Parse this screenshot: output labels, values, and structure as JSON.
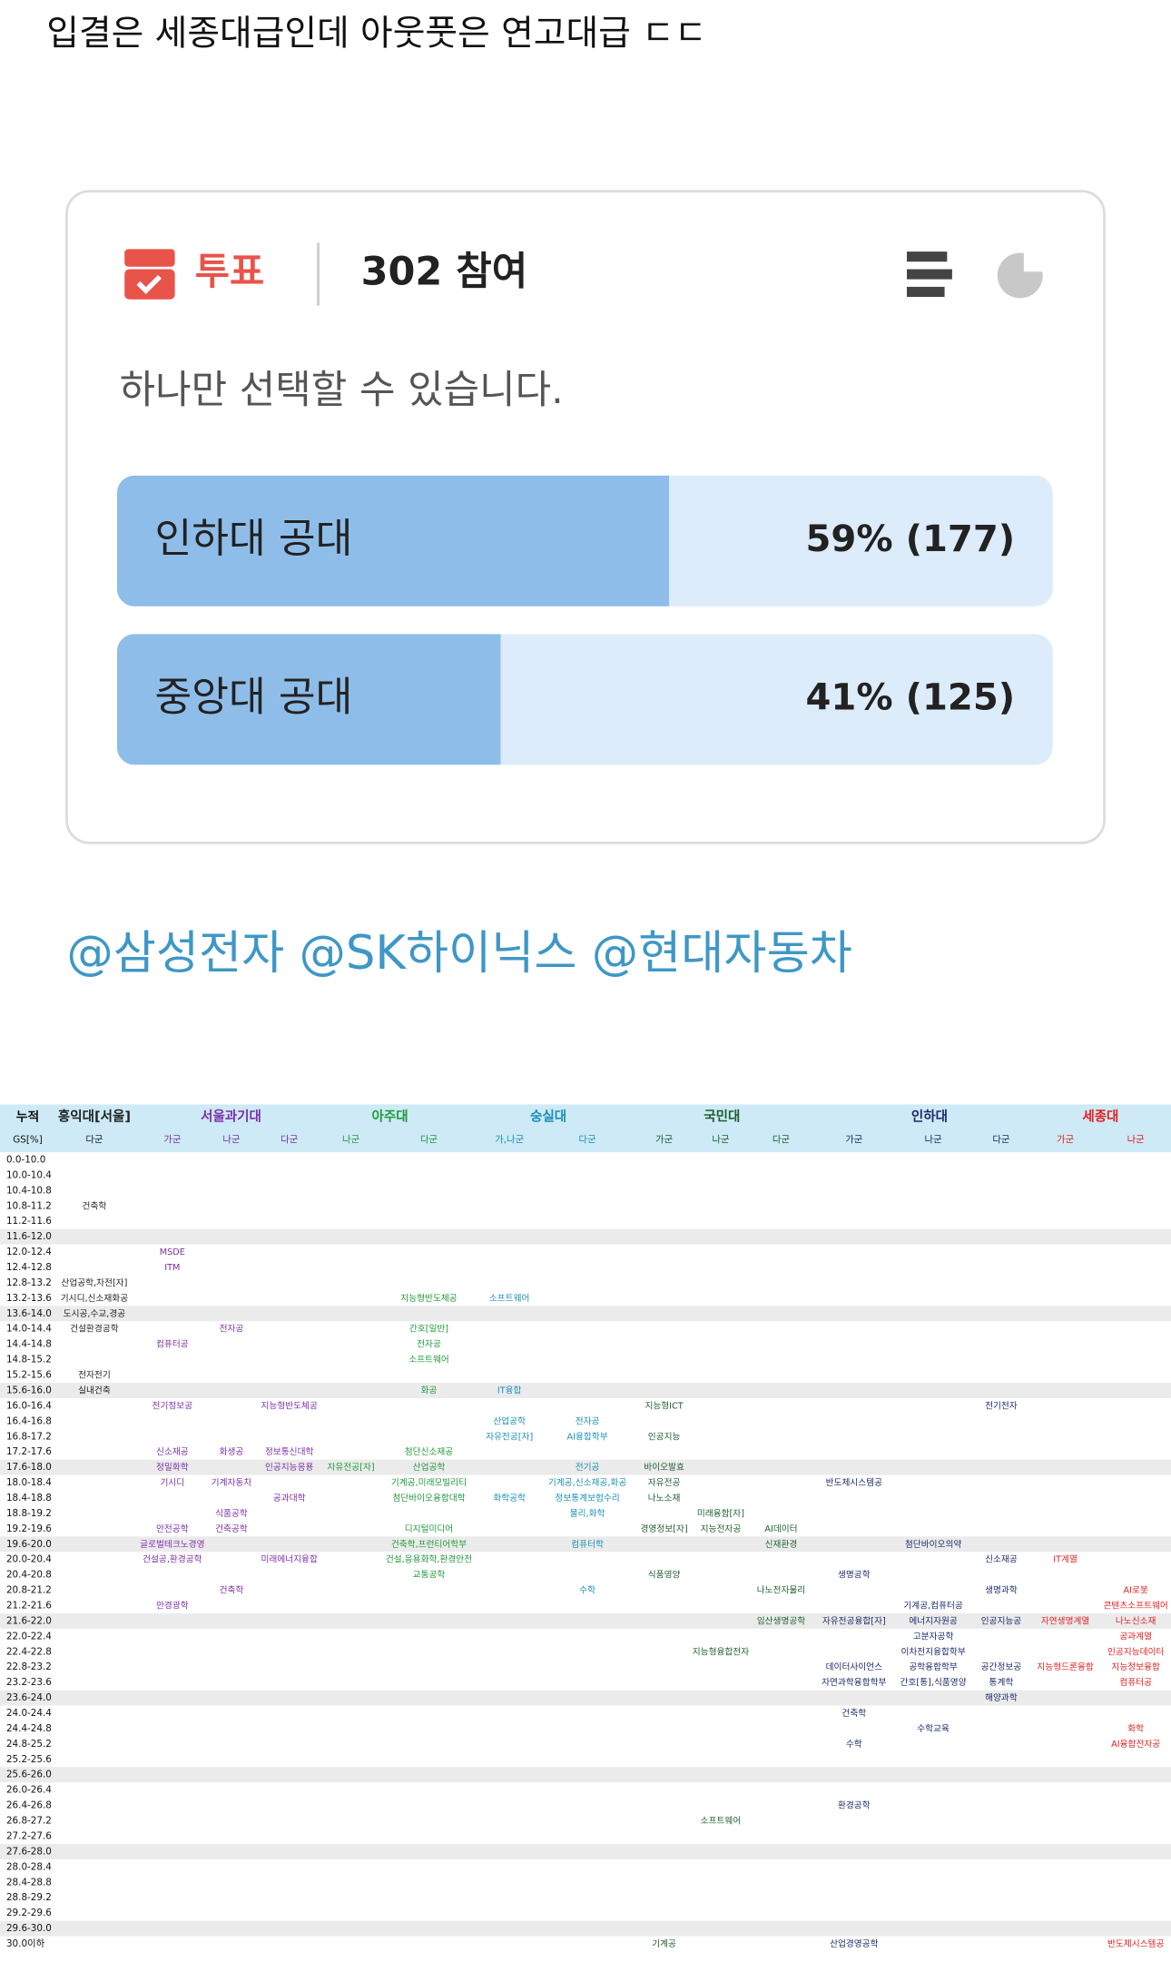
{
  "post": {
    "title": "입결은 세종대급인데 아웃풋은 연고대급 ㄷㄷ",
    "poll": {
      "badge": "투표",
      "participation": "302 참여",
      "instruction": "하나만 선택할 수 있습니다.",
      "options": [
        {
          "name": "인하대 공대",
          "percent": 59,
          "count": 177,
          "label": "59% (177)"
        },
        {
          "name": "중앙대 공대",
          "percent": 41,
          "count": 125,
          "label": "41% (125)"
        }
      ]
    },
    "mentions": "@삼성전자 @SK하이닉스 @현대자동차"
  },
  "table": {
    "corner": [
      "누적",
      "GS[%]"
    ],
    "rows": [
      "0.0-10.0",
      "10.0-10.4",
      "10.4-10.8",
      "10.8-11.2",
      "11.2-11.6",
      "11.6-12.0",
      "12.0-12.4",
      "12.4-12.8",
      "12.8-13.2",
      "13.2-13.6",
      "13.6-14.0",
      "14.0-14.4",
      "14.4-14.8",
      "14.8-15.2",
      "15.2-15.6",
      "15.6-16.0",
      "16.0-16.4",
      "16.4-16.8",
      "16.8-17.2",
      "17.2-17.6",
      "17.6-18.0",
      "18.0-18.4",
      "18.4-18.8",
      "18.8-19.2",
      "19.2-19.6",
      "19.6-20.0",
      "20.0-20.4",
      "20.4-20.8",
      "20.8-21.2",
      "21.2-21.6",
      "21.6-22.0",
      "22.0-22.4",
      "22.4-22.8",
      "22.8-23.2",
      "23.2-23.6",
      "23.6-24.0",
      "24.0-24.4",
      "24.4-24.8",
      "24.8-25.2",
      "25.2-25.6",
      "25.6-26.0",
      "26.0-26.4",
      "26.4-26.8",
      "26.8-27.2",
      "27.2-27.6",
      "27.6-28.0",
      "28.0-28.4",
      "28.4-28.8",
      "28.8-29.2",
      "29.2-29.6",
      "29.6-30.0",
      "30.0이하"
    ],
    "schools": [
      {
        "name": "홍익대[서울]",
        "color": "#222222",
        "columns": [
          {
            "group": "다군",
            "entries": [
              {
                "range": "10.8-11.2",
                "text": "건축학"
              },
              {
                "range": "12.8-13.2",
                "text": "산업공학,차전[자]"
              },
              {
                "range": "13.2-13.6",
                "text": "기시디,신소재화공"
              },
              {
                "range": "13.6-14.0",
                "text": "도시공,수교,경공"
              },
              {
                "range": "14.0-14.4",
                "text": "건설환경공학"
              },
              {
                "range": "15.2-15.6",
                "text": "전자전기"
              },
              {
                "range": "15.6-16.0",
                "text": "실내건축"
              }
            ]
          }
        ]
      },
      {
        "name": "서울과기대",
        "color": "#7b2fa8",
        "columns": [
          {
            "group": "가군",
            "entries": [
              {
                "range": "12.0-12.4",
                "text": "MSDE"
              },
              {
                "range": "12.4-12.8",
                "text": "ITM"
              },
              {
                "range": "14.4-14.8",
                "text": "컴퓨터공"
              },
              {
                "range": "16.0-16.4",
                "text": "전기정보공"
              },
              {
                "range": "17.2-17.6",
                "text": "신소재공"
              },
              {
                "range": "17.6-18.0",
                "text": "정밀화학"
              },
              {
                "range": "18.0-18.4",
                "text": "기시디"
              },
              {
                "range": "19.2-19.6",
                "text": "안전공학"
              },
              {
                "range": "19.6-20.0",
                "text": "글로벌테크노경영"
              },
              {
                "range": "20.0-20.4",
                "text": "건설공,환경공학"
              },
              {
                "range": "21.2-21.6",
                "text": "안경광학"
              }
            ]
          },
          {
            "group": "나군",
            "entries": [
              {
                "range": "14.0-14.4",
                "text": "전자공"
              },
              {
                "range": "17.2-17.6",
                "text": "화생공"
              },
              {
                "range": "18.0-18.4",
                "text": "기계자동차"
              },
              {
                "range": "18.8-19.2",
                "text": "식품공학"
              },
              {
                "range": "19.2-19.6",
                "text": "건축공학"
              },
              {
                "range": "20.8-21.2",
                "text": "건축학"
              }
            ]
          },
          {
            "group": "다군",
            "entries": [
              {
                "range": "16.0-16.4",
                "text": "지능형반도체공"
              },
              {
                "range": "17.2-17.6",
                "text": "정보통신대학"
              },
              {
                "range": "17.6-18.0",
                "text": "인공지능응용"
              },
              {
                "range": "18.4-18.8",
                "text": "공과대학"
              },
              {
                "range": "20.0-20.4",
                "text": "미래에너지융합"
              }
            ]
          }
        ]
      },
      {
        "name": "아주대",
        "color": "#1f9a3a",
        "columns": [
          {
            "group": "나군",
            "entries": [
              {
                "range": "17.6-18.0",
                "text": "자유전공[자]"
              }
            ]
          },
          {
            "group": "다군",
            "entries": [
              {
                "range": "13.2-13.6",
                "text": "지능형반도체공"
              },
              {
                "range": "14.0-14.4",
                "text": "간호[일반]"
              },
              {
                "range": "14.4-14.8",
                "text": "전자공"
              },
              {
                "range": "14.8-15.2",
                "text": "소프트웨어"
              },
              {
                "range": "15.6-16.0",
                "text": "화공"
              },
              {
                "range": "17.2-17.6",
                "text": "첨단신소재공"
              },
              {
                "range": "17.6-18.0",
                "text": "산업공학"
              },
              {
                "range": "18.0-18.4",
                "text": "기계공,미래모빌리티"
              },
              {
                "range": "18.4-18.8",
                "text": "첨단바이오융합대학"
              },
              {
                "range": "19.2-19.6",
                "text": "디지털미디어"
              },
              {
                "range": "19.6-20.0",
                "text": "건축학,프런티어학부"
              },
              {
                "range": "20.0-20.4",
                "text": "건설,응용화학,환경안전"
              },
              {
                "range": "20.4-20.8",
                "text": "교통공학"
              }
            ]
          }
        ]
      },
      {
        "name": "숭실대",
        "color": "#1a8fb5",
        "columns": [
          {
            "group": "가,나군",
            "entries": [
              {
                "range": "13.2-13.6",
                "text": "소프트웨어"
              },
              {
                "range": "15.6-16.0",
                "text": "IT융합"
              },
              {
                "range": "16.4-16.8",
                "text": "산업공학"
              },
              {
                "range": "16.8-17.2",
                "text": "자유전공[자]"
              },
              {
                "range": "18.4-18.8",
                "text": "화학공학"
              }
            ]
          },
          {
            "group": "다군",
            "entries": [
              {
                "range": "16.4-16.8",
                "text": "전자공"
              },
              {
                "range": "16.8-17.2",
                "text": "AI융합학부"
              },
              {
                "range": "17.6-18.0",
                "text": "전기공"
              },
              {
                "range": "18.0-18.4",
                "text": "기계공,신소재공,화공"
              },
              {
                "range": "18.4-18.8",
                "text": "정보통계보험수리"
              },
              {
                "range": "18.8-19.2",
                "text": "물리,화학"
              },
              {
                "range": "19.6-20.0",
                "text": "컴퓨터학"
              },
              {
                "range": "20.8-21.2",
                "text": "수학"
              }
            ]
          }
        ]
      },
      {
        "name": "국민대",
        "color": "#1d5e2e",
        "columns": [
          {
            "group": "가군",
            "entries": [
              {
                "range": "16.0-16.4",
                "text": "지능형ICT"
              },
              {
                "range": "16.8-17.2",
                "text": "인공지능"
              },
              {
                "range": "17.6-18.0",
                "text": "바이오발효"
              },
              {
                "range": "18.0-18.4",
                "text": "자유전공"
              },
              {
                "range": "18.4-18.8",
                "text": "나노소재"
              },
              {
                "range": "19.2-19.6",
                "text": "경영정보[자]"
              },
              {
                "range": "20.4-20.8",
                "text": "식품영양"
              },
              {
                "range": "30.0이하",
                "text": "기계공"
              }
            ]
          },
          {
            "group": "나군",
            "entries": [
              {
                "range": "18.8-19.2",
                "text": "미래융합[자]"
              },
              {
                "range": "19.2-19.6",
                "text": "지능전자공"
              },
              {
                "range": "22.4-22.8",
                "text": "지능형융합전자"
              },
              {
                "range": "26.8-27.2",
                "text": "소프트웨어"
              }
            ]
          },
          {
            "group": "다군",
            "entries": [
              {
                "range": "19.2-19.6",
                "text": "AI데이터"
              },
              {
                "range": "19.6-20.0",
                "text": "신재환경"
              },
              {
                "range": "20.8-21.2",
                "text": "나노전자물리"
              },
              {
                "range": "21.6-22.0",
                "text": "임산생명공학"
              }
            ]
          }
        ]
      },
      {
        "name": "인하대",
        "color": "#1b2a6b",
        "columns": [
          {
            "group": "가군",
            "entries": [
              {
                "range": "18.0-18.4",
                "text": "반도체시스템공"
              },
              {
                "range": "20.4-20.8",
                "text": "생명공학"
              },
              {
                "range": "21.6-22.0",
                "text": "자유전공융합[자]"
              },
              {
                "range": "22.8-23.2",
                "text": "데이터사이언스"
              },
              {
                "range": "23.2-23.6",
                "text": "자연과학융합학부"
              },
              {
                "range": "24.0-24.4",
                "text": "건축학"
              },
              {
                "range": "24.8-25.2",
                "text": "수학"
              },
              {
                "range": "26.4-26.8",
                "text": "환경공학"
              },
              {
                "range": "30.0이하",
                "text": "산업경영공학"
              }
            ]
          },
          {
            "group": "나군",
            "entries": [
              {
                "range": "19.6-20.0",
                "text": "첨단바이오의약"
              },
              {
                "range": "21.2-21.6",
                "text": "기계공,컴퓨터공"
              },
              {
                "range": "21.6-22.0",
                "text": "에너지자원공"
              },
              {
                "range": "22.0-22.4",
                "text": "고분자공학"
              },
              {
                "range": "22.4-22.8",
                "text": "이차전지융합학부"
              },
              {
                "range": "22.8-23.2",
                "text": "공학융합학부"
              },
              {
                "range": "23.2-23.6",
                "text": "간호[통],식품영양"
              },
              {
                "range": "24.4-24.8",
                "text": "수학교육"
              }
            ]
          },
          {
            "group": "다군",
            "entries": [
              {
                "range": "16.0-16.4",
                "text": "전기전자"
              },
              {
                "range": "20.0-20.4",
                "text": "신소재공"
              },
              {
                "range": "20.8-21.2",
                "text": "생명과학"
              },
              {
                "range": "21.6-22.0",
                "text": "인공지능공"
              },
              {
                "range": "22.8-23.2",
                "text": "공간정보공"
              },
              {
                "range": "23.2-23.6",
                "text": "통계학"
              },
              {
                "range": "23.6-24.0",
                "text": "해양과학"
              }
            ]
          }
        ]
      },
      {
        "name": "세종대",
        "color": "#e02020",
        "columns": [
          {
            "group": "가군",
            "entries": [
              {
                "range": "20.0-20.4",
                "text": "IT계열"
              },
              {
                "range": "21.6-22.0",
                "text": "자연생명계열"
              },
              {
                "range": "22.8-23.2",
                "text": "지능형드론융합"
              }
            ]
          },
          {
            "group": "나군",
            "entries": [
              {
                "range": "20.8-21.2",
                "text": "AI로봇"
              },
              {
                "range": "21.2-21.6",
                "text": "콘텐츠소프트웨어"
              },
              {
                "range": "21.6-22.0",
                "text": "나노신소재"
              },
              {
                "range": "22.0-22.4",
                "text": "공과계열"
              },
              {
                "range": "22.4-22.8",
                "text": "인공지능데이터"
              },
              {
                "range": "22.8-23.2",
                "text": "지능정보융합"
              },
              {
                "range": "23.2-23.6",
                "text": "컴퓨터공"
              },
              {
                "range": "24.4-24.8",
                "text": "화학"
              },
              {
                "range": "24.8-25.2",
                "text": "AI융합전자공"
              },
              {
                "range": "30.0이하",
                "text": "반도체시스템공"
              }
            ]
          }
        ]
      }
    ]
  }
}
